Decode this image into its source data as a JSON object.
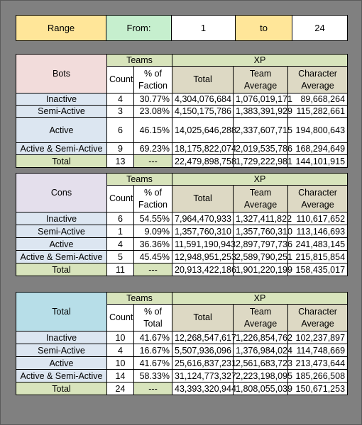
{
  "range": {
    "label": "Range",
    "from_label": "From:",
    "from_value": "1",
    "to_label": "to",
    "to_value": "24"
  },
  "headers": {
    "teams": "Teams",
    "xp": "XP",
    "count": "Count",
    "pct_of": "% of",
    "faction": "Faction",
    "total_word": "Total",
    "xp_total": "Total",
    "team": "Team",
    "average": "Average",
    "character": "Character",
    "dash": "---"
  },
  "sections": [
    {
      "name": "Bots",
      "rows": [
        {
          "label": "Inactive",
          "count": "4",
          "pct": "30.77%",
          "total": "4,304,076,684",
          "team_avg": "1,076,019,171",
          "char_avg": "89,668,264"
        },
        {
          "label": "Semi-Active",
          "count": "3",
          "pct": "23.08%",
          "total": "4,150,175,786",
          "team_avg": "1,383,391,929",
          "char_avg": "115,282,661"
        },
        {
          "label": "Active",
          "count": "6",
          "pct": "46.15%",
          "total": "14,025,646,288",
          "team_avg": "2,337,607,715",
          "char_avg": "194,800,643"
        },
        {
          "label": "Active & Semi-Active",
          "count": "9",
          "pct": "69.23%",
          "total": "18,175,822,074",
          "team_avg": "2,019,535,786",
          "char_avg": "168,294,649"
        }
      ],
      "total": {
        "label": "Total",
        "count": "13",
        "pct": "---",
        "total": "22,479,898,758",
        "team_avg": "1,729,222,981",
        "char_avg": "144,101,915"
      }
    },
    {
      "name": "Cons",
      "rows": [
        {
          "label": "Inactive",
          "count": "6",
          "pct": "54.55%",
          "total": "7,964,470,933",
          "team_avg": "1,327,411,822",
          "char_avg": "110,617,652"
        },
        {
          "label": "Semi-Active",
          "count": "1",
          "pct": "9.09%",
          "total": "1,357,760,310",
          "team_avg": "1,357,760,310",
          "char_avg": "113,146,693"
        },
        {
          "label": "Active",
          "count": "4",
          "pct": "36.36%",
          "total": "11,591,190,943",
          "team_avg": "2,897,797,736",
          "char_avg": "241,483,145"
        },
        {
          "label": "Active & Semi-Active",
          "count": "5",
          "pct": "45.45%",
          "total": "12,948,951,253",
          "team_avg": "2,589,790,251",
          "char_avg": "215,815,854"
        }
      ],
      "total": {
        "label": "Total",
        "count": "11",
        "pct": "---",
        "total": "20,913,422,186",
        "team_avg": "1,901,220,199",
        "char_avg": "158,435,017"
      }
    },
    {
      "name": "Total",
      "rows": [
        {
          "label": "Inactive",
          "count": "10",
          "pct": "41.67%",
          "total": "12,268,547,617",
          "team_avg": "1,226,854,762",
          "char_avg": "102,237,897"
        },
        {
          "label": "Semi-Active",
          "count": "4",
          "pct": "16.67%",
          "total": "5,507,936,096",
          "team_avg": "1,376,984,024",
          "char_avg": "114,748,669"
        },
        {
          "label": "Active",
          "count": "10",
          "pct": "41.67%",
          "total": "25,616,837,231",
          "team_avg": "2,561,683,723",
          "char_avg": "213,473,644"
        },
        {
          "label": "Active & Semi-Active",
          "count": "14",
          "pct": "58.33%",
          "total": "31,124,773,327",
          "team_avg": "2,223,198,095",
          "char_avg": "185,266,508"
        }
      ],
      "total": {
        "label": "Total",
        "count": "24",
        "pct": "---",
        "total": "43,393,320,944",
        "team_avg": "1,808,055,039",
        "char_avg": "150,671,253"
      }
    }
  ]
}
